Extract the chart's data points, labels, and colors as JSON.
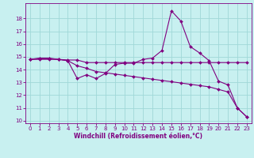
{
  "title": "",
  "xlabel": "Windchill (Refroidissement éolien,°C)",
  "bg_color": "#c8f0f0",
  "grid_color": "#a0d8d8",
  "line_color": "#800080",
  "text_color": "#800080",
  "spine_color": "#800080",
  "xlim": [
    -0.5,
    23.5
  ],
  "ylim": [
    9.8,
    19.2
  ],
  "yticks": [
    10,
    11,
    12,
    13,
    14,
    15,
    16,
    17,
    18
  ],
  "xticks": [
    0,
    1,
    2,
    3,
    4,
    5,
    6,
    7,
    8,
    9,
    10,
    11,
    12,
    13,
    14,
    15,
    16,
    17,
    18,
    19,
    20,
    21,
    22,
    23
  ],
  "line1_x": [
    0,
    1,
    2,
    3,
    4,
    5,
    6,
    7,
    8,
    9,
    10,
    11,
    12,
    13,
    14,
    15,
    16,
    17,
    18,
    19,
    20,
    21,
    22,
    23
  ],
  "line1_y": [
    14.8,
    14.9,
    14.9,
    14.8,
    14.7,
    13.3,
    13.6,
    13.3,
    13.7,
    14.4,
    14.5,
    14.5,
    14.8,
    14.9,
    15.5,
    18.6,
    17.8,
    15.8,
    15.3,
    14.7,
    13.1,
    12.8,
    11.0,
    10.3
  ],
  "line2_x": [
    0,
    1,
    2,
    3,
    4,
    5,
    6,
    7,
    8,
    9,
    10,
    11,
    12,
    13,
    14,
    15,
    16,
    17,
    18,
    19,
    20,
    21,
    22,
    23
  ],
  "line2_y": [
    14.8,
    14.85,
    14.85,
    14.8,
    14.75,
    14.75,
    14.55,
    14.55,
    14.55,
    14.55,
    14.55,
    14.55,
    14.55,
    14.55,
    14.55,
    14.55,
    14.55,
    14.55,
    14.55,
    14.55,
    14.55,
    14.55,
    14.55,
    14.55
  ],
  "line3_x": [
    0,
    1,
    2,
    3,
    4,
    5,
    6,
    7,
    8,
    9,
    10,
    11,
    12,
    13,
    14,
    15,
    16,
    17,
    18,
    19,
    20,
    21,
    22,
    23
  ],
  "line3_y": [
    14.8,
    14.8,
    14.8,
    14.8,
    14.7,
    14.3,
    14.1,
    13.85,
    13.75,
    13.65,
    13.55,
    13.45,
    13.35,
    13.25,
    13.15,
    13.05,
    12.95,
    12.85,
    12.75,
    12.65,
    12.45,
    12.25,
    11.0,
    10.3
  ],
  "marker_size": 2.0,
  "linewidth": 0.8,
  "tick_fontsize": 5.0,
  "xlabel_fontsize": 5.5
}
